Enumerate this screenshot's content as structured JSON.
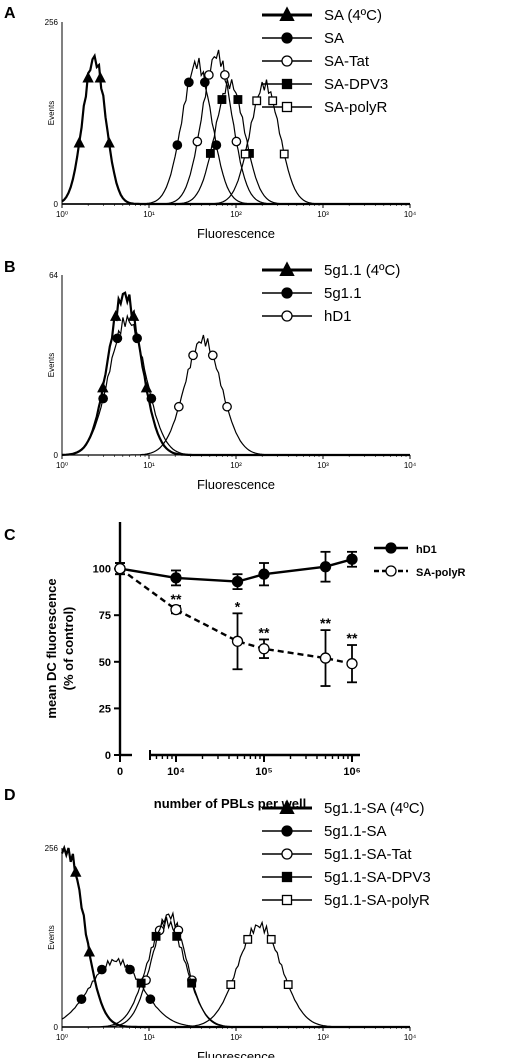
{
  "panels": {
    "A": {
      "label": "A"
    },
    "B": {
      "label": "B"
    },
    "C": {
      "label": "C"
    },
    "D": {
      "label": "D"
    }
  },
  "chart_data": [
    {
      "id": "A",
      "type": "line",
      "xscale": "log",
      "xlim": [
        1,
        10000
      ],
      "xticks": [
        "10⁰",
        "10¹",
        "10²",
        "10³",
        "10⁴"
      ],
      "ylim": [
        0,
        256
      ],
      "yticks": [
        "0",
        "256"
      ],
      "xlabel": "Fluorescence",
      "ylabel": "Events",
      "series": [
        {
          "name": "SA (4ºC)",
          "marker": "filled-triangle",
          "bold": true,
          "mu": 0.37,
          "sigma": 0.13,
          "peak": 205
        },
        {
          "name": "SA",
          "marker": "filled-circle",
          "bold": false,
          "mu": 1.55,
          "sigma": 0.17,
          "peak": 198
        },
        {
          "name": "SA-Tat",
          "marker": "open-circle",
          "bold": false,
          "mu": 1.78,
          "sigma": 0.17,
          "peak": 210
        },
        {
          "name": "SA-DPV3",
          "marker": "filled-square",
          "bold": false,
          "mu": 1.93,
          "sigma": 0.17,
          "peak": 170
        },
        {
          "name": "SA-polyR",
          "marker": "open-square",
          "bold": false,
          "mu": 2.33,
          "sigma": 0.17,
          "peak": 168
        }
      ]
    },
    {
      "id": "B",
      "type": "line",
      "xscale": "log",
      "xlim": [
        1,
        10000
      ],
      "xticks": [
        "10⁰",
        "10¹",
        "10²",
        "10³",
        "10⁴"
      ],
      "ylim": [
        0,
        64
      ],
      "yticks": [
        "0",
        "64"
      ],
      "xlabel": "Fluorescence",
      "ylabel": "Events",
      "series": [
        {
          "name": "5g1.1 (4ºC)",
          "marker": "filled-triangle",
          "bold": true,
          "mu": 0.72,
          "sigma": 0.19,
          "peak": 57
        },
        {
          "name": "5g1.1",
          "marker": "filled-circle",
          "bold": false,
          "mu": 0.75,
          "sigma": 0.21,
          "peak": 48
        },
        {
          "name": "hD1",
          "marker": "open-circle",
          "bold": false,
          "mu": 1.62,
          "sigma": 0.21,
          "peak": 41
        }
      ]
    },
    {
      "id": "C",
      "type": "line",
      "xscale": "log-broken",
      "xlim": [
        0,
        1000000
      ],
      "xticks": [
        "0",
        "10⁴",
        "10⁵",
        "10⁶"
      ],
      "ylim": [
        0,
        125
      ],
      "yticks": [
        "0",
        "25",
        "50",
        "75",
        "100"
      ],
      "xlabel": "number of PBLs per well",
      "ylabel": "mean DC fluorescence\n(% of control)",
      "legend": "right",
      "series": [
        {
          "name": "hD1",
          "marker": "filled-circle",
          "dash": false,
          "x": [
            0,
            10000,
            50000,
            100000,
            500000,
            1000000
          ],
          "y": [
            100,
            95,
            93,
            97,
            101,
            105
          ],
          "err": [
            3,
            4,
            4,
            6,
            8,
            4
          ]
        },
        {
          "name": "SA-polyR",
          "marker": "open-circle",
          "dash": true,
          "x": [
            0,
            10000,
            50000,
            100000,
            500000,
            1000000
          ],
          "y": [
            100,
            78,
            61,
            57,
            52,
            49
          ],
          "err": [
            3,
            2,
            15,
            5,
            15,
            10
          ]
        }
      ],
      "annotations": [
        {
          "x": 10000,
          "text": "**",
          "y": 81
        },
        {
          "x": 50000,
          "text": "*",
          "y": 77
        },
        {
          "x": 100000,
          "text": "**",
          "y": 63
        },
        {
          "x": 500000,
          "text": "**",
          "y": 68
        },
        {
          "x": 1000000,
          "text": "**",
          "y": 60
        }
      ]
    },
    {
      "id": "D",
      "type": "line",
      "xscale": "log",
      "xlim": [
        1,
        10000
      ],
      "xticks": [
        "10⁰",
        "10¹",
        "10²",
        "10³",
        "10⁴"
      ],
      "ylim": [
        0,
        256
      ],
      "yticks": [
        "0",
        "256"
      ],
      "xlabel": "Fluorescence",
      "ylabel": "Events",
      "series": [
        {
          "name": "5g1.1-SA (4ºC)",
          "marker": "filled-triangle",
          "bold": true,
          "mu": 0.05,
          "sigma": 0.2,
          "peak": 256
        },
        {
          "name": "5g1.1-SA",
          "marker": "filled-circle",
          "bold": false,
          "mu": 0.62,
          "sigma": 0.3,
          "peak": 95
        },
        {
          "name": "5g1.1-SA-Tat",
          "marker": "open-circle",
          "bold": false,
          "mu": 1.23,
          "sigma": 0.2,
          "peak": 160
        },
        {
          "name": "5g1.1-SA-DPV3",
          "marker": "filled-square",
          "bold": false,
          "mu": 1.2,
          "sigma": 0.22,
          "peak": 150
        },
        {
          "name": "5g1.1-SA-polyR",
          "marker": "open-square",
          "bold": false,
          "mu": 2.27,
          "sigma": 0.25,
          "peak": 145
        }
      ]
    }
  ]
}
